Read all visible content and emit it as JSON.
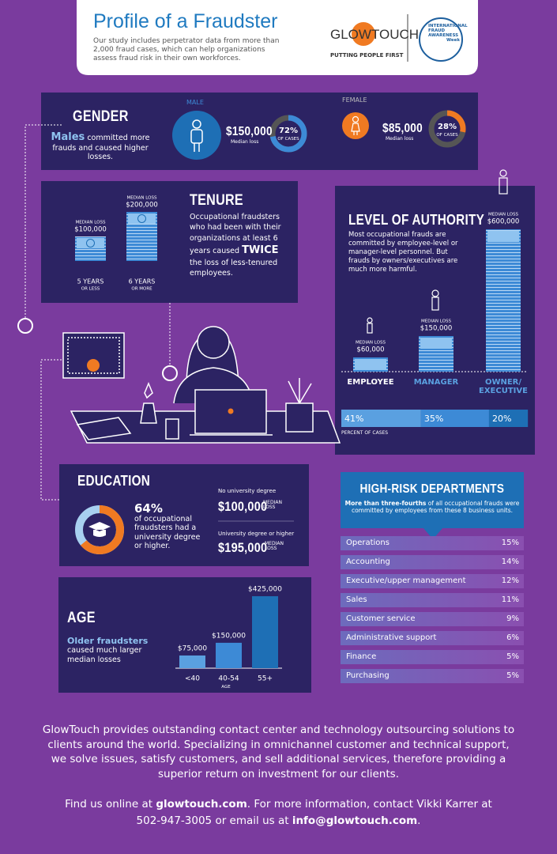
{
  "header": {
    "title": "Profile of a Fraudster",
    "subtitle": "Our study includes perpetrator data from more than 2,000 fraud cases, which can help organizations assess fraud risk in their own workforces.",
    "logo_text": "GLOWTOUCH",
    "logo_tagline": "PUTTING PEOPLE FIRST",
    "badge": [
      "INTERNATIONAL",
      "FRAUD",
      "AWARENESS",
      "Week"
    ]
  },
  "gender": {
    "title": "GENDER",
    "text_bold": "Males",
    "text_rest": "committed more frauds and caused higher losses.",
    "male": {
      "label": "MALE",
      "loss": "$150,000",
      "loss_caption": "Median loss",
      "percent": 72,
      "percent_label": "72%",
      "percent_caption": "OF CASES"
    },
    "female": {
      "label": "FEMALE",
      "loss": "$85,000",
      "loss_caption": "Median loss",
      "percent": 28,
      "percent_label": "28%",
      "percent_caption": "OF CASES"
    }
  },
  "tenure": {
    "title": "TENURE",
    "text_before": "Occupational fraudsters who had been with their organizations at least 6 years caused",
    "text_bold": "TWICE",
    "text_after": "the loss of less-tenured employees.",
    "bars": [
      {
        "caption": "MEDIAN LOSS",
        "value": 100000,
        "value_label": "$100,000",
        "label": "5 YEARS",
        "sublabel": "OR LESS"
      },
      {
        "caption": "MEDIAN LOSS",
        "value": 200000,
        "value_label": "$200,000",
        "label": "6 YEARS",
        "sublabel": "OR MORE"
      }
    ]
  },
  "authority": {
    "title": "LEVEL OF AUTHORITY",
    "text": "Most occupational frauds are committed by employee-level or manager-level personnel. But frauds by owners/executives are much more harmful.",
    "levels": [
      {
        "name": "EMPLOYEE",
        "caption": "MEDIAN LOSS",
        "value": 60000,
        "value_label": "$60,000",
        "percent": 41,
        "percent_label": "41%"
      },
      {
        "name": "MANAGER",
        "caption": "MEDIAN LOSS",
        "value": 150000,
        "value_label": "$150,000",
        "percent": 35,
        "percent_label": "35%"
      },
      {
        "name": "OWNER/ EXECUTIVE",
        "caption": "MEDIAN LOSS",
        "value": 600000,
        "value_label": "$600,000",
        "percent": 20,
        "percent_label": "20%"
      }
    ],
    "percent_caption": "PERCENT OF CASES"
  },
  "education": {
    "title": "EDUCATION",
    "percent": 64,
    "percent_label": "64%",
    "text": "of occupational fraudsters had a university degree or higher.",
    "items": [
      {
        "label": "No university degree",
        "value": "$100,000",
        "unit": "MEDIAN LOSS"
      },
      {
        "label": "University degree or higher",
        "value": "$195,000",
        "unit": "MEDIAN LOSS"
      }
    ]
  },
  "age": {
    "title": "AGE",
    "text_bold": "Older fraudsters",
    "text_rest": "caused much larger median losses",
    "axis_label": "AGE",
    "bars": [
      {
        "label": "<40",
        "value": 75000,
        "value_label": "$75,000"
      },
      {
        "label": "40-54",
        "value": 150000,
        "value_label": "$150,000"
      },
      {
        "label": "55+",
        "value": 425000,
        "value_label": "$425,000"
      }
    ]
  },
  "departments": {
    "title": "HIGH-RISK DEPARTMENTS",
    "subtitle_bold": "More than three-fourths",
    "subtitle_rest": "of all occupational frauds were committed by employees from these 8 business units.",
    "rows": [
      {
        "name": "Operations",
        "percent": "15%"
      },
      {
        "name": "Accounting",
        "percent": "14%"
      },
      {
        "name": "Executive/upper management",
        "percent": "12%"
      },
      {
        "name": "Sales",
        "percent": "11%"
      },
      {
        "name": "Customer service",
        "percent": "9%"
      },
      {
        "name": "Administrative support",
        "percent": "6%"
      },
      {
        "name": "Finance",
        "percent": "5%"
      },
      {
        "name": "Purchasing",
        "percent": "5%"
      }
    ]
  },
  "footer": {
    "paragraph": "GlowTouch provides outstanding contact center and technology outsourcing solutions to clients around the world. Specializing in omnichannel customer and technical support, we solve issues, satisfy customers, and sell additional services, therefore providing a superior return on investment for our clients.",
    "contact_1": "Find us online at",
    "website": "glowtouch.com",
    "contact_2": ". For more information, contact Vikki Karrer at 502-947-3005 or email us at",
    "email": "info@glowtouch.com",
    "contact_3": "."
  }
}
